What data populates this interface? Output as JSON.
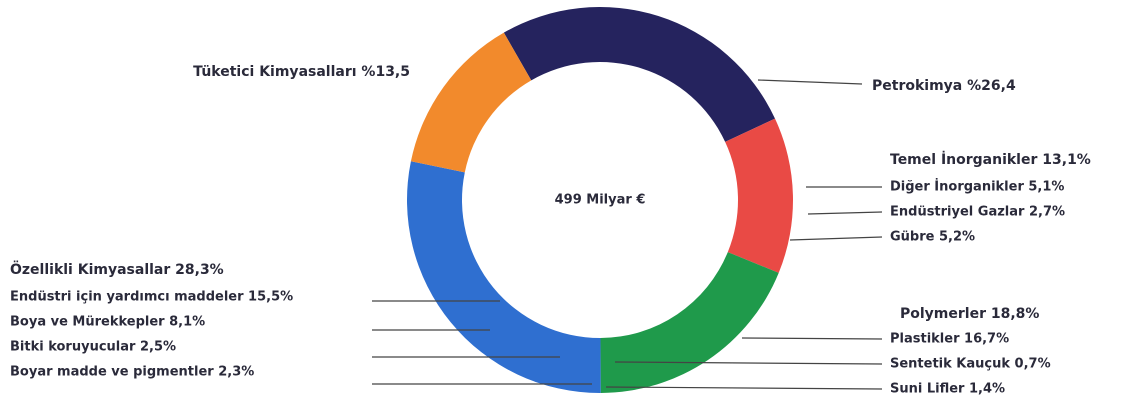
{
  "chart_data": {
    "type": "pie",
    "donut": true,
    "center_label": "499 Milyar €",
    "categories": [
      "Petrokimya",
      "Temel İnorganikler",
      "Polymerler",
      "Özellikli Kimyasallar",
      "Tüketici Kimyasalları"
    ],
    "values": [
      26.4,
      13.1,
      18.8,
      28.3,
      13.5
    ],
    "value_labels": [
      "%26,4",
      "13,1%",
      "18,8%",
      "28,3%",
      "%13,5"
    ],
    "colors": [
      "#25235e",
      "#e94a45",
      "#1f9a4b",
      "#2f6fd0",
      "#f28a2c"
    ],
    "details": [
      [],
      [
        "Diğer İnorganikler 5,1%",
        "Endüstriyel Gazlar 2,7%",
        "Gübre 5,2%"
      ],
      [
        "Plastikler 16,7%",
        "Sentetik Kauçuk 0,7%",
        "Suni Lifler 1,4%"
      ],
      [
        "Endüstri için yardımcı maddeler 15,5%",
        "Boya ve Mürekkepler 8,1%",
        "Bitki koruyucular 2,5%",
        "Boyar madde ve pigmentler 2,3%"
      ],
      []
    ]
  }
}
